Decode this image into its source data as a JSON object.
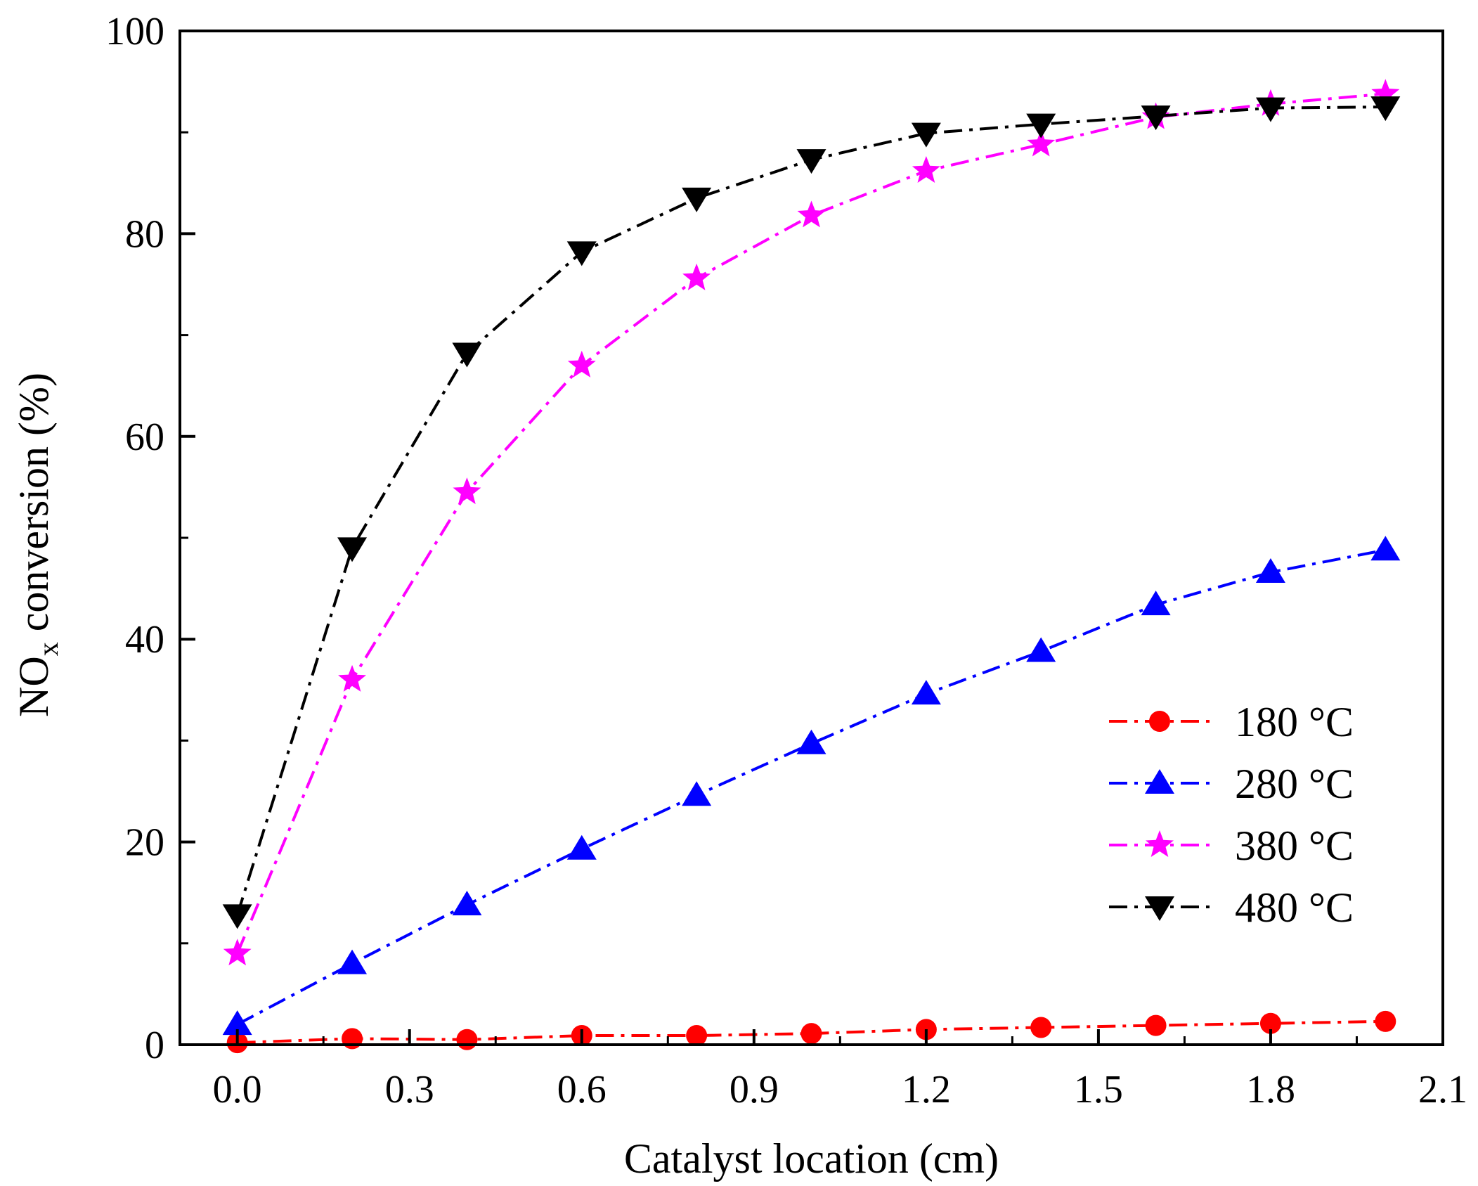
{
  "chart_data": {
    "type": "line",
    "title": "",
    "xlabel": "Catalyst location (cm)",
    "ylabel": {
      "main": "NO",
      "sub": "x",
      "rest": " conversion (%)"
    },
    "xlim": [
      -0.1,
      2.1
    ],
    "ylim": [
      0,
      100
    ],
    "xticks": [
      0.0,
      0.3,
      0.6,
      0.9,
      1.2,
      1.5,
      1.8,
      2.1
    ],
    "xtick_labels": [
      "0.0",
      "0.3",
      "0.6",
      "0.9",
      "1.2",
      "1.5",
      "1.8",
      "2.1"
    ],
    "yticks": [
      0,
      20,
      40,
      60,
      80,
      100
    ],
    "ytick_labels": [
      "0",
      "20",
      "40",
      "60",
      "80",
      "100"
    ],
    "x": [
      0.0,
      0.2,
      0.4,
      0.6,
      0.8,
      1.0,
      1.2,
      1.4,
      1.6,
      1.8,
      2.0
    ],
    "legend_position": "right",
    "series": [
      {
        "name": "180 °C",
        "marker": "circle",
        "color": "#ff0000",
        "values": [
          0.2,
          0.6,
          0.5,
          0.9,
          0.9,
          1.1,
          1.5,
          1.7,
          1.9,
          2.1,
          2.3
        ]
      },
      {
        "name": "280 °C",
        "marker": "triangle-up",
        "color": "#0000ff",
        "values": [
          2.0,
          8.0,
          13.8,
          19.3,
          24.6,
          29.7,
          34.6,
          38.8,
          43.4,
          46.6,
          48.8
        ]
      },
      {
        "name": "380 °C",
        "marker": "star",
        "color": "#ff00ff",
        "values": [
          9.0,
          36.0,
          54.5,
          67.0,
          75.6,
          81.8,
          86.2,
          88.8,
          91.5,
          92.8,
          93.8
        ]
      },
      {
        "name": "480 °C",
        "marker": "triangle-down",
        "color": "#000000",
        "values": [
          12.8,
          49.0,
          68.2,
          78.2,
          83.5,
          87.3,
          89.9,
          90.8,
          91.6,
          92.4,
          92.5
        ]
      }
    ]
  }
}
